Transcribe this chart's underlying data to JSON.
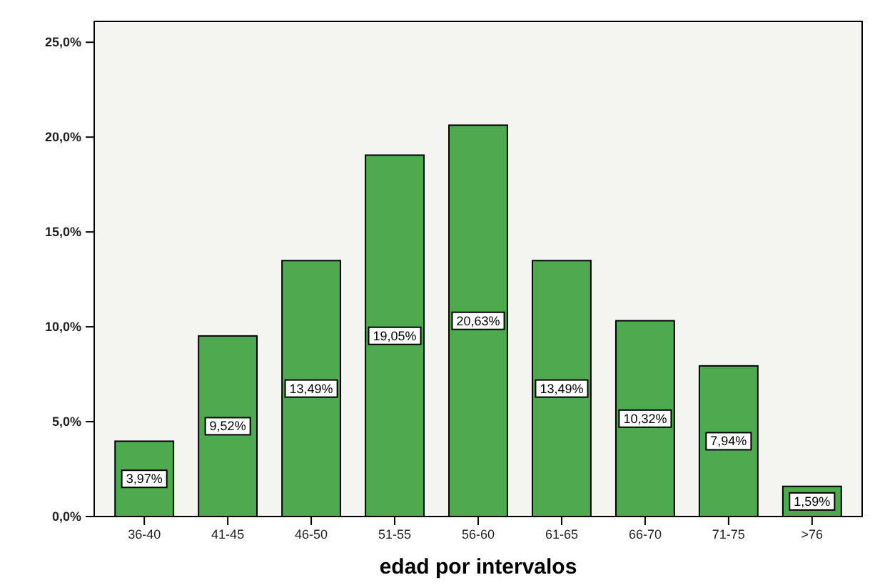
{
  "chart_data": {
    "type": "bar",
    "xlabel": "edad por intervalos",
    "categories": [
      "36-40",
      "41-45",
      "46-50",
      "51-55",
      "56-60",
      "61-65",
      "66-70",
      "71-75",
      ">76"
    ],
    "values": [
      3.97,
      9.52,
      13.49,
      19.05,
      20.63,
      13.49,
      10.32,
      7.94,
      1.59
    ],
    "value_labels": [
      "3,97%",
      "9,52%",
      "13,49%",
      "19,05%",
      "20,63%",
      "13,49%",
      "10,32%",
      "7,94%",
      "1,59%"
    ],
    "color": "#4fa94f",
    "ylim": [
      0,
      26.1
    ],
    "yticks": [
      {
        "value": 0,
        "label": "0,0%"
      },
      {
        "value": 5,
        "label": "5,0%"
      },
      {
        "value": 10,
        "label": "10,0%"
      },
      {
        "value": 15,
        "label": "15,0%"
      },
      {
        "value": 20,
        "label": "20,0%"
      },
      {
        "value": 25,
        "label": "25,0%"
      }
    ],
    "grid": false
  }
}
